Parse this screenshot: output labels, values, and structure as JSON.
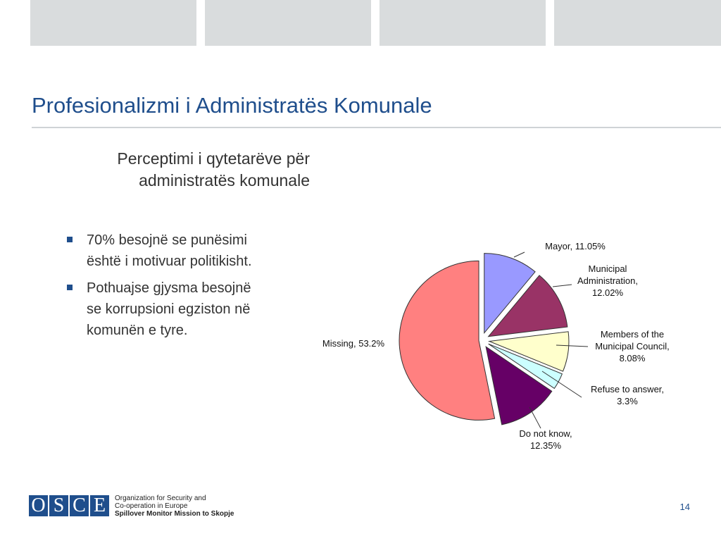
{
  "title": "Profesionalizmi i Administratës Komunale",
  "subheading": [
    "Perceptimi i qytetarëve për",
    "administratës komunale"
  ],
  "bullets": [
    {
      "lines": [
        "70% besojnë se punësimi",
        "është i motivuar politikisht."
      ]
    },
    {
      "lines": [
        "Pothuajse gjysma besojnë",
        "se korrupsioni egziston në",
        "komunën e tyre."
      ]
    }
  ],
  "chart_data": {
    "type": "pie",
    "title": "",
    "series": [
      {
        "values": [
          {
            "label": [
              "Mayor, 11.05%"
            ],
            "value": 11.05,
            "color": "#9999ff"
          },
          {
            "label": [
              "Municipal",
              "Administration,",
              "12.02%"
            ],
            "value": 12.02,
            "color": "#993366"
          },
          {
            "label": [
              "Members of the",
              "Municipal Council,",
              "8.08%"
            ],
            "value": 8.08,
            "color": "#ffffcc"
          },
          {
            "label": [
              "Refuse to answer,",
              "3.3%"
            ],
            "value": 3.3,
            "color": "#ccffff"
          },
          {
            "label": [
              "Do not know,",
              "12.35%"
            ],
            "value": 12.35,
            "color": "#660066"
          },
          {
            "label": [
              "Missing, 53.2%"
            ],
            "value": 53.2,
            "color": "#ff8080"
          }
        ]
      }
    ],
    "exploded": true,
    "legend": "none"
  },
  "footer": {
    "logo_letters": [
      "O",
      "S",
      "C",
      "E"
    ],
    "org_lines": [
      "Organization for Security and",
      "Co-operation in Europe"
    ],
    "org_bold_line": "Spillover Monitor Mission to Skopje",
    "page_number": "14"
  }
}
